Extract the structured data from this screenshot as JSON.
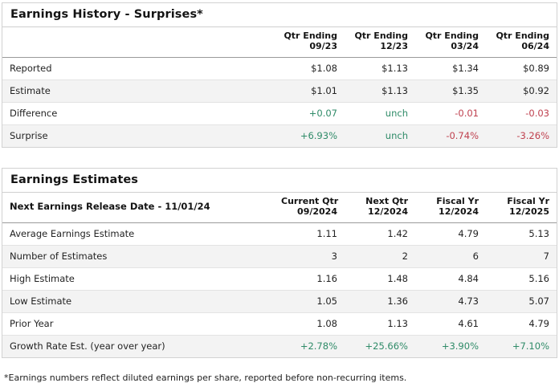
{
  "colors": {
    "positive": "#2f8b68",
    "negative": "#bf404e",
    "default_text": "#232323",
    "alt_row_bg": "#f3f3f3",
    "border": "#d2d2d2"
  },
  "surprises_table": {
    "title": "Earnings History - Surprises*",
    "corner_label": "",
    "columns": [
      {
        "line1": "Qtr Ending",
        "line2": "09/23"
      },
      {
        "line1": "Qtr Ending",
        "line2": "12/23"
      },
      {
        "line1": "Qtr Ending",
        "line2": "03/24"
      },
      {
        "line1": "Qtr Ending",
        "line2": "06/24"
      }
    ],
    "rows": [
      {
        "label": "Reported",
        "values": [
          "$1.08",
          "$1.13",
          "$1.34",
          "$0.89"
        ],
        "tones": [
          "default",
          "default",
          "default",
          "default"
        ]
      },
      {
        "label": "Estimate",
        "values": [
          "$1.01",
          "$1.13",
          "$1.35",
          "$0.92"
        ],
        "tones": [
          "default",
          "default",
          "default",
          "default"
        ]
      },
      {
        "label": "Difference",
        "values": [
          "+0.07",
          "unch",
          "-0.01",
          "-0.03"
        ],
        "tones": [
          "pos",
          "pos",
          "neg",
          "neg"
        ]
      },
      {
        "label": "Surprise",
        "values": [
          "+6.93%",
          "unch",
          "-0.74%",
          "-3.26%"
        ],
        "tones": [
          "pos",
          "pos",
          "neg",
          "neg"
        ]
      }
    ]
  },
  "estimates_table": {
    "title": "Earnings Estimates",
    "corner_label": "Next Earnings Release Date - 11/01/24",
    "columns": [
      {
        "line1": "Current Qtr",
        "line2": "09/2024"
      },
      {
        "line1": "Next Qtr",
        "line2": "12/2024"
      },
      {
        "line1": "Fiscal Yr",
        "line2": "12/2024"
      },
      {
        "line1": "Fiscal Yr",
        "line2": "12/2025"
      }
    ],
    "rows": [
      {
        "label": "Average Earnings Estimate",
        "values": [
          "1.11",
          "1.42",
          "4.79",
          "5.13"
        ],
        "tones": [
          "default",
          "default",
          "default",
          "default"
        ]
      },
      {
        "label": "Number of Estimates",
        "values": [
          "3",
          "2",
          "6",
          "7"
        ],
        "tones": [
          "default",
          "default",
          "default",
          "default"
        ]
      },
      {
        "label": "High Estimate",
        "values": [
          "1.16",
          "1.48",
          "4.84",
          "5.16"
        ],
        "tones": [
          "default",
          "default",
          "default",
          "default"
        ]
      },
      {
        "label": "Low Estimate",
        "values": [
          "1.05",
          "1.36",
          "4.73",
          "5.07"
        ],
        "tones": [
          "default",
          "default",
          "default",
          "default"
        ]
      },
      {
        "label": "Prior Year",
        "values": [
          "1.08",
          "1.13",
          "4.61",
          "4.79"
        ],
        "tones": [
          "default",
          "default",
          "default",
          "default"
        ]
      },
      {
        "label": "Growth Rate Est. (year over year)",
        "values": [
          "+2.78%",
          "+25.66%",
          "+3.90%",
          "+7.10%"
        ],
        "tones": [
          "pos",
          "pos",
          "pos",
          "pos"
        ]
      }
    ]
  },
  "footnote": "*Earnings numbers reflect diluted earnings per share, reported before non-recurring items.",
  "chart_data": [
    {
      "type": "table",
      "title": "Earnings History - Surprises*",
      "columns": [
        "",
        "Qtr Ending 09/23",
        "Qtr Ending 12/23",
        "Qtr Ending 03/24",
        "Qtr Ending 06/24"
      ],
      "rows": [
        [
          "Reported",
          "$1.08",
          "$1.13",
          "$1.34",
          "$0.89"
        ],
        [
          "Estimate",
          "$1.01",
          "$1.13",
          "$1.35",
          "$0.92"
        ],
        [
          "Difference",
          "+0.07",
          "unch",
          "-0.01",
          "-0.03"
        ],
        [
          "Surprise",
          "+6.93%",
          "unch",
          "-0.74%",
          "-3.26%"
        ]
      ]
    },
    {
      "type": "table",
      "title": "Earnings Estimates",
      "columns": [
        "Next Earnings Release Date - 11/01/24",
        "Current Qtr 09/2024",
        "Next Qtr 12/2024",
        "Fiscal Yr 12/2024",
        "Fiscal Yr 12/2025"
      ],
      "rows": [
        [
          "Average Earnings Estimate",
          "1.11",
          "1.42",
          "4.79",
          "5.13"
        ],
        [
          "Number of Estimates",
          "3",
          "2",
          "6",
          "7"
        ],
        [
          "High Estimate",
          "1.16",
          "1.48",
          "4.84",
          "5.16"
        ],
        [
          "Low Estimate",
          "1.05",
          "1.36",
          "4.73",
          "5.07"
        ],
        [
          "Prior Year",
          "1.08",
          "1.13",
          "4.61",
          "4.79"
        ],
        [
          "Growth Rate Est. (year over year)",
          "+2.78%",
          "+25.66%",
          "+3.90%",
          "+7.10%"
        ]
      ]
    }
  ]
}
